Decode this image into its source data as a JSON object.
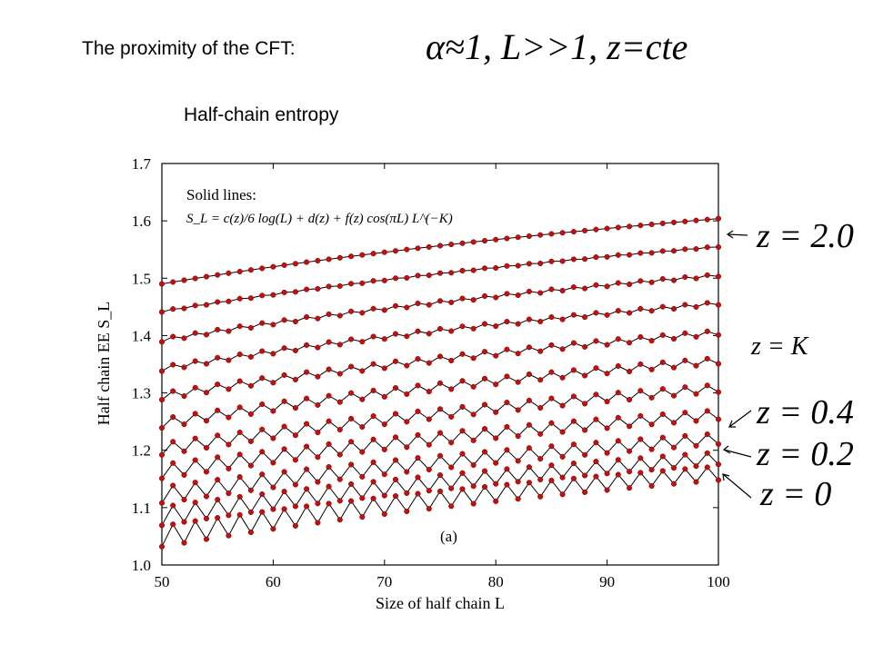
{
  "slide": {
    "title": "The proximity of the CFT:",
    "condition": "α≈1,  L>>1,   z=cte",
    "subtitle": "Half-chain entropy"
  },
  "chart_data": {
    "type": "line",
    "xlabel": "Size of half chain L",
    "ylabel": "Half chain EE S_L",
    "xlim": [
      50,
      100
    ],
    "ylim": [
      1.0,
      1.7
    ],
    "xticks": [
      "50",
      "60",
      "70",
      "80",
      "90",
      "100"
    ],
    "yticks": [
      "1.0",
      "1.1",
      "1.2",
      "1.3",
      "1.4",
      "1.5",
      "1.6",
      "1.7"
    ],
    "legend_title": "Solid lines:",
    "formula": "S_L = c(z)/6 log(L) + d(z) + f(z) cos(πL) L^(−K)",
    "panel_label": "(a)",
    "marker_color": "#c01010",
    "line_color": "#000000",
    "x_range": [
      50,
      100
    ],
    "series": [
      {
        "start": 1.49,
        "end": 1.604,
        "osc": 0.0
      },
      {
        "start": 1.442,
        "end": 1.555,
        "osc": 0.001
      },
      {
        "start": 1.392,
        "end": 1.505,
        "osc": 0.003
      },
      {
        "start": 1.342,
        "end": 1.456,
        "osc": 0.004
      },
      {
        "start": 1.294,
        "end": 1.405,
        "osc": 0.006
      },
      {
        "start": 1.247,
        "end": 1.356,
        "osc": 0.008
      },
      {
        "start": 1.202,
        "end": 1.308,
        "osc": 0.01
      },
      {
        "start": 1.163,
        "end": 1.262,
        "osc": 0.012
      },
      {
        "start": 1.122,
        "end": 1.22,
        "osc": 0.014
      },
      {
        "start": 1.085,
        "end": 1.186,
        "osc": 0.016
      },
      {
        "start": 1.05,
        "end": 1.16,
        "osc": 0.018
      }
    ],
    "annotations": [
      {
        "text": "z = 2.0"
      },
      {
        "text": "z = K"
      },
      {
        "text": "z = 0.4"
      },
      {
        "text": "z = 0.2"
      },
      {
        "text": "z = 0"
      }
    ]
  }
}
